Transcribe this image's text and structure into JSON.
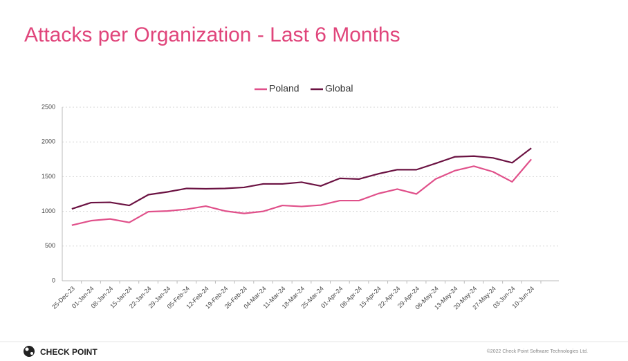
{
  "chart_data": {
    "type": "line",
    "title": "Attacks per Organization - Last 6 Months",
    "categories": [
      "25-Dec-23",
      "01-Jan-24",
      "08-Jan-24",
      "15-Jan-24",
      "22-Jan-24",
      "29-Jan-24",
      "05-Feb-24",
      "12-Feb-24",
      "19-Feb-24",
      "26-Feb-24",
      "04-Mar-24",
      "11-Mar-24",
      "18-Mar-24",
      "25-Mar-24",
      "01-Apr-24",
      "08-Apr-24",
      "15-Apr-24",
      "22-Apr-24",
      "29-Apr-24",
      "06-May-24",
      "13-May-24",
      "20-May-24",
      "27-May-24",
      "03-Jun-24",
      "10-Jun-24"
    ],
    "series": [
      {
        "name": "Poland",
        "color": "#e0508a",
        "values": [
          800,
          865,
          890,
          840,
          995,
          1005,
          1030,
          1075,
          1005,
          970,
          1000,
          1085,
          1070,
          1090,
          1155,
          1155,
          1255,
          1320,
          1250,
          1465,
          1585,
          1650,
          1570,
          1425,
          1750
        ]
      },
      {
        "name": "Global",
        "color": "#6b1242",
        "values": [
          1035,
          1125,
          1130,
          1085,
          1240,
          1280,
          1330,
          1325,
          1330,
          1345,
          1395,
          1395,
          1420,
          1365,
          1475,
          1465,
          1540,
          1600,
          1600,
          1690,
          1785,
          1795,
          1770,
          1700,
          1910
        ]
      }
    ],
    "ylim": [
      0,
      2500
    ],
    "yticks": [
      0,
      500,
      1000,
      1500,
      2000,
      2500
    ],
    "grid": true,
    "legend": "top"
  },
  "footer": {
    "brand": "CHECK POINT",
    "copyright": "©2022 Check Point Software Technologies Ltd."
  }
}
